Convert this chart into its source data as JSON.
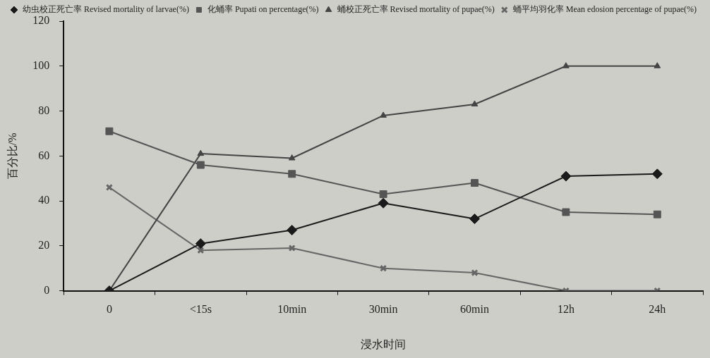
{
  "chart_data": {
    "type": "line",
    "xlabel": "浸水时间",
    "ylabel": "百分比/%",
    "categories": [
      "0",
      "<15s",
      "10min",
      "30min",
      "60min",
      "12h",
      "24h"
    ],
    "series": [
      {
        "name": "幼虫校正死亡率 Revised mortality of larvae(%)",
        "color": "#1a1a1a",
        "marker": "diamond",
        "values": [
          0,
          21,
          27,
          39,
          32,
          51,
          52
        ]
      },
      {
        "name": "化蛹率 Pupati on percentage(%)",
        "color": "#555555",
        "marker": "square",
        "values": [
          71,
          56,
          52,
          43,
          48,
          35,
          34
        ]
      },
      {
        "name": "蛹校正死亡率 Revised mortality of pupae(%)",
        "color": "#444444",
        "marker": "triangle",
        "values": [
          0,
          61,
          59,
          78,
          83,
          100,
          100
        ]
      },
      {
        "name": "蛹平均羽化率 Mean edosion percentage of pupae(%)",
        "color": "#666666",
        "marker": "cross",
        "values": [
          46,
          18,
          19,
          10,
          8,
          0,
          0
        ]
      }
    ],
    "ylim": [
      0,
      120
    ],
    "yticks": [
      0,
      20,
      40,
      60,
      80,
      100,
      120
    ],
    "grid": false,
    "legend": "top",
    "line_style": "solid"
  }
}
